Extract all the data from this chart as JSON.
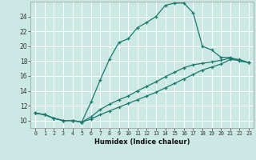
{
  "title": "",
  "xlabel": "Humidex (Indice chaleur)",
  "background_color": "#cce8e4",
  "grid_color": "#ffffff",
  "line_color": "#1a7a6e",
  "xlim": [
    -0.5,
    23.5
  ],
  "ylim": [
    9.0,
    26.0
  ],
  "xticks": [
    0,
    1,
    2,
    3,
    4,
    5,
    6,
    7,
    8,
    9,
    10,
    11,
    12,
    13,
    14,
    15,
    16,
    17,
    18,
    19,
    20,
    21,
    22,
    23
  ],
  "yticks": [
    10,
    12,
    14,
    16,
    18,
    20,
    22,
    24
  ],
  "series1_x": [
    0,
    1,
    2,
    3,
    4,
    5,
    6,
    7,
    8,
    9,
    10,
    11,
    12,
    13,
    14,
    15,
    16,
    17,
    18,
    19,
    20,
    21,
    22,
    23
  ],
  "series1_y": [
    11.0,
    10.8,
    10.3,
    10.0,
    10.0,
    9.8,
    12.5,
    15.5,
    18.3,
    20.5,
    21.0,
    22.5,
    23.2,
    24.0,
    25.5,
    25.8,
    25.8,
    24.5,
    20.0,
    19.5,
    18.5,
    18.5,
    18.0,
    17.8
  ],
  "series2_x": [
    0,
    1,
    2,
    3,
    4,
    5,
    6,
    7,
    8,
    9,
    10,
    11,
    12,
    13,
    14,
    15,
    16,
    17,
    18,
    19,
    20,
    21,
    22,
    23
  ],
  "series2_y": [
    11.0,
    10.8,
    10.3,
    10.0,
    10.0,
    9.8,
    10.2,
    10.8,
    11.3,
    11.8,
    12.3,
    12.8,
    13.3,
    13.8,
    14.4,
    15.0,
    15.6,
    16.2,
    16.8,
    17.2,
    17.6,
    18.2,
    18.1,
    17.8
  ],
  "series3_x": [
    0,
    1,
    2,
    3,
    4,
    5,
    6,
    7,
    8,
    9,
    10,
    11,
    12,
    13,
    14,
    15,
    16,
    17,
    18,
    19,
    20,
    21,
    22,
    23
  ],
  "series3_y": [
    11.0,
    10.8,
    10.3,
    10.0,
    10.0,
    9.8,
    10.5,
    11.5,
    12.2,
    12.8,
    13.3,
    14.0,
    14.6,
    15.2,
    15.9,
    16.5,
    17.1,
    17.5,
    17.7,
    17.9,
    18.1,
    18.4,
    18.2,
    17.8
  ]
}
